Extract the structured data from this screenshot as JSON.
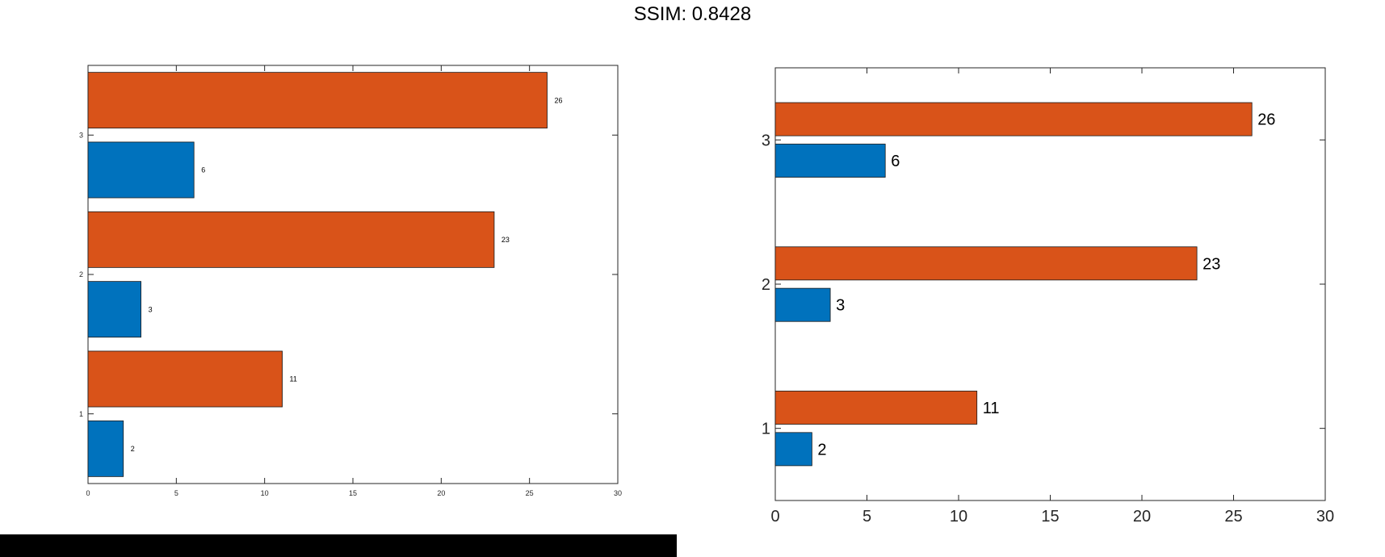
{
  "header": {
    "title": "SSIM: 0.8428"
  },
  "colors": {
    "series1": "#0072BD",
    "series2": "#D95319",
    "axis": "#262626"
  },
  "chart_data": [
    {
      "type": "bar",
      "orientation": "horizontal",
      "categories": [
        "1",
        "2",
        "3"
      ],
      "series": [
        {
          "values": [
            2,
            3,
            6
          ]
        },
        {
          "values": [
            11,
            23,
            26
          ]
        }
      ],
      "xlim": [
        0,
        30
      ],
      "xticks": [
        "0",
        "5",
        "10",
        "15",
        "20",
        "25",
        "30"
      ],
      "grid": false
    },
    {
      "type": "bar",
      "orientation": "horizontal",
      "categories": [
        "1",
        "2",
        "3"
      ],
      "series": [
        {
          "values": [
            2,
            3,
            6
          ]
        },
        {
          "values": [
            11,
            23,
            26
          ]
        }
      ],
      "xlim": [
        0,
        30
      ],
      "xticks": [
        "0",
        "5",
        "10",
        "15",
        "20",
        "25",
        "30"
      ],
      "grid": false
    }
  ]
}
